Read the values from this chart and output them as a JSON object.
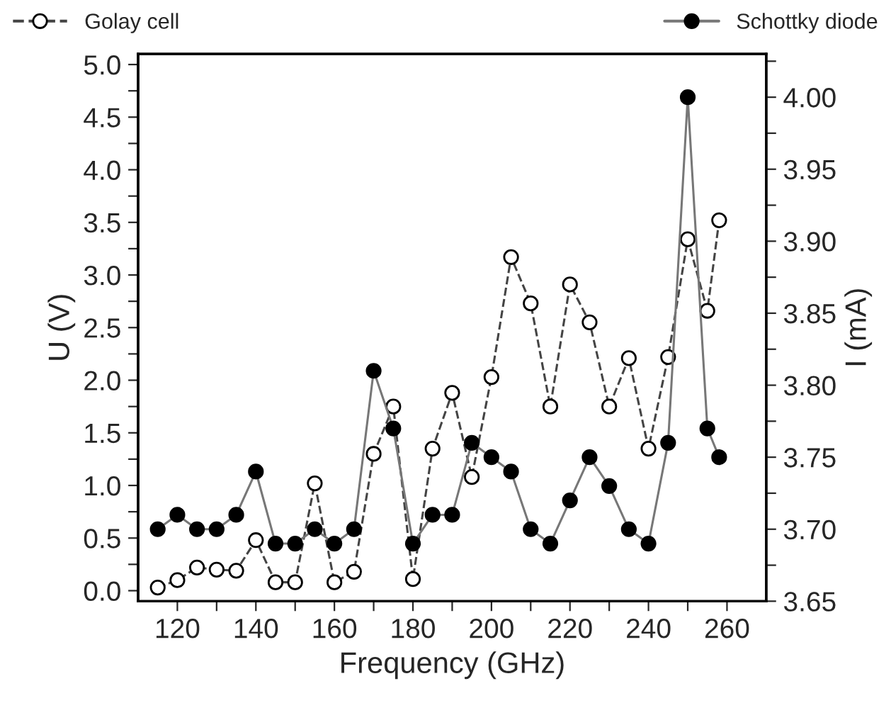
{
  "chart_data": {
    "type": "line",
    "xlabel": "Frequency (GHz)",
    "ylabel": "U (V)",
    "y2label": "I (mA)",
    "x": [
      115,
      120,
      125,
      130,
      135,
      140,
      145,
      150,
      155,
      160,
      165,
      170,
      175,
      180,
      185,
      190,
      195,
      200,
      205,
      210,
      215,
      220,
      225,
      230,
      235,
      240,
      245,
      250,
      255,
      258
    ],
    "series": [
      {
        "name": "Golay cell",
        "color": "#ffffff",
        "line_style": "dashed",
        "marker": "circle",
        "values": [
          0.03,
          0.1,
          0.22,
          0.2,
          0.19,
          0.48,
          0.08,
          0.08,
          1.02,
          0.08,
          0.18,
          1.3,
          1.75,
          0.11,
          1.35,
          1.88,
          1.08,
          2.03,
          3.17,
          2.73,
          1.75,
          2.91,
          2.55,
          1.75,
          2.21,
          1.35,
          2.22,
          3.34,
          2.66,
          3.52
        ]
      },
      {
        "name": "Schottky diode",
        "color": "#000000",
        "line_style": "solid",
        "marker": "circle",
        "axis": "y2",
        "values": [
          3.7,
          3.71,
          3.7,
          3.7,
          3.71,
          3.74,
          3.69,
          3.69,
          3.7,
          3.69,
          3.7,
          3.81,
          3.77,
          3.69,
          3.71,
          3.71,
          3.76,
          3.75,
          3.74,
          3.7,
          3.69,
          3.72,
          3.75,
          3.73,
          3.7,
          3.69,
          3.76,
          4.0,
          3.77,
          3.75
        ]
      }
    ],
    "xlim": [
      110,
      270
    ],
    "xticks": [
      120,
      {
        "value": 130,
        "label": null
      },
      140,
      {
        "value": 150,
        "label": null
      },
      160,
      {
        "value": 170,
        "label": null
      },
      180,
      {
        "value": 190,
        "label": null
      },
      200,
      {
        "value": 210,
        "label": null
      },
      220,
      {
        "value": 230,
        "label": null
      },
      240,
      {
        "value": 250,
        "label": null
      },
      260
    ],
    "ylim": [
      -0.1,
      5.1
    ],
    "yticks": [
      {
        "value": 0,
        "label": "0.0"
      },
      {
        "value": 0.25,
        "label": null
      },
      {
        "value": 0.5,
        "label": "0.5"
      },
      {
        "value": 0.75,
        "label": null
      },
      {
        "value": 1,
        "label": "1.0"
      },
      {
        "value": 1.25,
        "label": null
      },
      {
        "value": 1.5,
        "label": "1.5"
      },
      {
        "value": 1.75,
        "label": null
      },
      {
        "value": 2,
        "label": "2.0"
      },
      {
        "value": 2.25,
        "label": null
      },
      {
        "value": 2.5,
        "label": "2.5"
      },
      {
        "value": 2.75,
        "label": null
      },
      {
        "value": 3,
        "label": "3.0"
      },
      {
        "value": 3.25,
        "label": null
      },
      {
        "value": 3.5,
        "label": "3.5"
      },
      {
        "value": 3.75,
        "label": null
      },
      {
        "value": 4,
        "label": "4.0"
      },
      {
        "value": 4.25,
        "label": null
      },
      {
        "value": 4.5,
        "label": "4.5"
      },
      {
        "value": 4.75,
        "label": null
      },
      {
        "value": 5,
        "label": "5.0"
      }
    ],
    "y2lim": [
      3.65,
      4.03
    ],
    "y2ticks": [
      3.65,
      {
        "value": 3.675,
        "label": null
      },
      {
        "value": 3.7,
        "label": "3.70"
      },
      {
        "value": 3.725,
        "label": null
      },
      3.75,
      {
        "value": 3.775,
        "label": null
      },
      {
        "value": 3.8,
        "label": "3.80"
      },
      {
        "value": 3.825,
        "label": null
      },
      3.85,
      {
        "value": 3.875,
        "label": null
      },
      {
        "value": 3.9,
        "label": "3.90"
      },
      {
        "value": 3.925,
        "label": null
      },
      3.95,
      {
        "value": 3.975,
        "label": null
      },
      {
        "value": 4.0,
        "label": "4.00"
      },
      {
        "value": 4.025,
        "label": null
      }
    ],
    "legend": "top",
    "grid": false
  }
}
